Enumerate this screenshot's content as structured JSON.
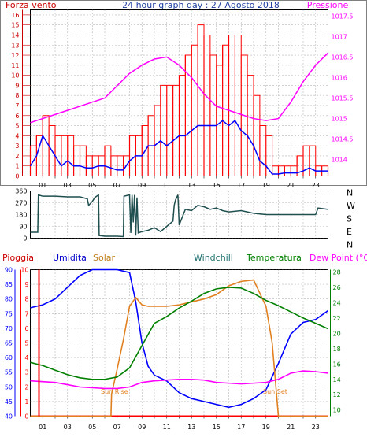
{
  "header": {
    "left": "Forza vento",
    "center": "24 hour graph day : 27 Agosto 2018",
    "right": "Pressione"
  },
  "colors": {
    "wind": "#ff0000",
    "wind_avg": "#0000ff",
    "pressure": "#ff00ff",
    "direction": "#1f4f4f",
    "rain": "#ff0000",
    "humidity": "#0000ff",
    "solar": "#e08020",
    "windchill": "#1f6f6f",
    "temperature": "#008000",
    "dewpoint": "#ff00ff",
    "axis_label_left": "#cc0000",
    "grid": "#707070"
  },
  "x_ticks": [
    "01",
    "03",
    "05",
    "07",
    "09",
    "11",
    "13",
    "15",
    "17",
    "19",
    "21",
    "23"
  ],
  "chart_data": [
    {
      "type": "line",
      "title": "24 hour graph day : 27 Agosto 2018",
      "x_range": [
        0,
        24
      ],
      "left_axis": {
        "label": "Forza vento",
        "range": [
          0,
          16.5
        ],
        "ticks": [
          0,
          1,
          2,
          3,
          4,
          5,
          6,
          7,
          8,
          9,
          10,
          11,
          12,
          13,
          14,
          15,
          16
        ]
      },
      "right_axis": {
        "label": "Pressione",
        "range": [
          1013.6,
          1017.65
        ],
        "ticks": [
          1014,
          1014.5,
          1015,
          1015.5,
          1016,
          1016.5,
          1017,
          1017.5
        ]
      },
      "series": [
        {
          "name": "Forza vento",
          "axis": "left",
          "x": [
            0,
            0.5,
            1,
            1.5,
            2,
            2.5,
            3,
            3.5,
            4,
            4.5,
            5,
            5.5,
            6,
            6.5,
            7,
            7.5,
            8,
            8.5,
            9,
            9.5,
            10,
            10.5,
            11,
            11.5,
            12,
            12.5,
            13,
            13.5,
            14,
            14.5,
            15,
            15.5,
            16,
            16.5,
            17,
            17.5,
            18,
            18.5,
            19,
            19.5,
            20,
            20.5,
            21,
            21.5,
            22,
            22.5,
            23,
            23.5,
            24
          ],
          "values": [
            3,
            4,
            6,
            5,
            4,
            4,
            4,
            3,
            3,
            2,
            2,
            2,
            3,
            2,
            2,
            2,
            4,
            4,
            5,
            6,
            7,
            9,
            9,
            9,
            10,
            12,
            13,
            15,
            14,
            12,
            11,
            13,
            14,
            14,
            12,
            10,
            8,
            5,
            4,
            1,
            1,
            1,
            1,
            2,
            3,
            3,
            1,
            1,
            1
          ]
        },
        {
          "name": "vento medio",
          "axis": "left",
          "x": [
            0,
            0.5,
            1,
            1.5,
            2,
            2.5,
            3,
            3.5,
            4,
            4.5,
            5,
            5.5,
            6,
            6.5,
            7,
            7.5,
            8,
            8.5,
            9,
            9.5,
            10,
            10.5,
            11,
            11.5,
            12,
            12.5,
            13,
            13.5,
            14,
            14.5,
            15,
            15.5,
            16,
            16.5,
            17,
            17.5,
            18,
            18.5,
            19,
            19.5,
            20,
            20.5,
            21,
            21.5,
            22,
            22.5,
            23,
            23.5,
            24
          ],
          "values": [
            1,
            2,
            4,
            3,
            2,
            1,
            1.5,
            1,
            1,
            0.8,
            0.8,
            1,
            1,
            0.8,
            0.6,
            0.6,
            1.5,
            2,
            2,
            3,
            3,
            3.5,
            3,
            3.5,
            4,
            4,
            4.5,
            5,
            5,
            5,
            5,
            5.5,
            5,
            5.5,
            4.5,
            4,
            3,
            1.5,
            1,
            0.2,
            0.2,
            0.3,
            0.3,
            0.3,
            0.5,
            0.8,
            0.5,
            0.5,
            0.5
          ]
        },
        {
          "name": "Pressione",
          "axis": "right",
          "x": [
            0,
            1,
            2,
            3,
            4,
            5,
            6,
            7,
            8,
            9,
            10,
            11,
            12,
            13,
            14,
            15,
            16,
            17,
            18,
            19,
            20,
            21,
            22,
            23,
            24
          ],
          "values": [
            1014.9,
            1015.0,
            1015.1,
            1015.2,
            1015.3,
            1015.4,
            1015.5,
            1015.8,
            1016.1,
            1016.3,
            1016.45,
            1016.5,
            1016.3,
            1016.0,
            1015.6,
            1015.3,
            1015.2,
            1015.1,
            1015.0,
            1014.95,
            1015.0,
            1015.4,
            1015.9,
            1016.3,
            1016.6
          ]
        }
      ]
    },
    {
      "type": "line",
      "x_range": [
        0,
        24
      ],
      "left_axis": {
        "range": [
          0,
          360
        ],
        "ticks": [
          0,
          45,
          90,
          135,
          180,
          225,
          270,
          315,
          360
        ]
      },
      "right_axis": {
        "ticks": [
          "N",
          "W",
          "S",
          "E",
          "N"
        ]
      },
      "series": [
        {
          "name": "direzione",
          "x": [
            0,
            0.6,
            0.65,
            1,
            2,
            3,
            4,
            4.6,
            4.7,
            5,
            5.2,
            5.5,
            5.55,
            6,
            7,
            7.5,
            7.55,
            8,
            8.1,
            8.2,
            8.3,
            8.4,
            8.5,
            8.6,
            8.7,
            9,
            9.5,
            10,
            10.5,
            11,
            11.5,
            11.6,
            11.7,
            11.9,
            12,
            12.5,
            13,
            13.5,
            14,
            14.5,
            15,
            15.5,
            16,
            17,
            18,
            19,
            20,
            21,
            22,
            23,
            23.2,
            24
          ],
          "values": [
            45,
            45,
            330,
            320,
            320,
            315,
            315,
            300,
            250,
            280,
            310,
            330,
            20,
            15,
            15,
            12,
            320,
            330,
            40,
            330,
            120,
            330,
            20,
            310,
            40,
            50,
            60,
            80,
            50,
            90,
            130,
            250,
            290,
            330,
            100,
            220,
            210,
            250,
            240,
            220,
            230,
            210,
            200,
            210,
            190,
            180,
            180,
            180,
            180,
            180,
            230,
            220
          ]
        }
      ]
    },
    {
      "type": "line",
      "x_range": [
        0,
        24
      ],
      "left_axes": [
        {
          "label": "Pioggia",
          "range": [
            0,
            10
          ],
          "ticks": [
            0,
            1,
            2,
            3,
            4,
            5,
            6,
            7,
            8,
            9,
            10
          ]
        },
        {
          "label": "Umidita",
          "range": [
            40,
            90
          ],
          "ticks": [
            40,
            45,
            50,
            55,
            60,
            65,
            70,
            75,
            80,
            85,
            90
          ]
        }
      ],
      "right_axis": {
        "label": "Dew Point (°C)",
        "range": [
          9.2,
          28.3
        ],
        "ticks": [
          10,
          12,
          14,
          16,
          18,
          20,
          22,
          24,
          26,
          28
        ]
      },
      "labels_middle": [
        "Solar",
        "Windchill",
        "Temperatura"
      ],
      "annotations": [
        "Sun Rise",
        "Sun Set"
      ],
      "series": [
        {
          "name": "Pioggia",
          "axis": "Pioggia",
          "x": [
            0,
            24
          ],
          "values": [
            0,
            0
          ]
        },
        {
          "name": "Umidita",
          "axis": "Umidita",
          "x": [
            0,
            1,
            2,
            3,
            4,
            5,
            6,
            7,
            8,
            8.5,
            9,
            9.5,
            10,
            11,
            12,
            13,
            14,
            15,
            16,
            17,
            18,
            19,
            20,
            21,
            22,
            23,
            24
          ],
          "values": [
            77,
            78,
            80,
            84,
            88,
            90,
            90,
            90,
            89,
            79,
            65,
            57,
            54,
            52,
            48,
            46,
            45,
            44,
            43,
            44,
            46,
            49,
            58,
            68,
            72,
            73,
            76
          ]
        },
        {
          "name": "Solar",
          "axis": "Pioggia",
          "x": [
            0,
            6,
            6.5,
            6.55,
            7,
            7.5,
            8,
            8.5,
            9,
            9.5,
            10,
            11,
            12,
            13,
            14,
            15,
            16,
            17,
            18,
            19,
            19.5,
            19.8,
            20,
            24
          ],
          "values": [
            0,
            0,
            0,
            1.5,
            3.2,
            5.2,
            7.5,
            8.1,
            7.6,
            7.5,
            7.5,
            7.5,
            7.6,
            7.8,
            8.0,
            8.3,
            8.9,
            9.2,
            9.3,
            7.5,
            5.0,
            2.0,
            0,
            0
          ]
        },
        {
          "name": "Temperatura",
          "axis": "right",
          "x": [
            0,
            1,
            2,
            3,
            4,
            5,
            6,
            7,
            8,
            9,
            10,
            11,
            12,
            13,
            14,
            15,
            16,
            17,
            18,
            19,
            20,
            21,
            22,
            23,
            24
          ],
          "values": [
            16.2,
            15.8,
            15.2,
            14.6,
            14.2,
            14.0,
            14.0,
            14.3,
            15.5,
            18.4,
            21.3,
            22.2,
            23.3,
            24.2,
            25.2,
            25.8,
            26.0,
            25.9,
            25.2,
            24.3,
            23.6,
            22.8,
            22.0,
            21.3,
            20.6
          ]
        },
        {
          "name": "Dew Point (°C)",
          "axis": "right",
          "x": [
            0,
            1,
            2,
            3,
            4,
            5,
            6,
            7,
            8,
            9,
            10,
            11,
            12,
            13,
            14,
            15,
            16,
            17,
            18,
            19,
            20,
            21,
            22,
            23,
            24
          ],
          "values": [
            13.8,
            13.7,
            13.6,
            13.3,
            13.0,
            12.9,
            12.8,
            12.8,
            13.0,
            13.6,
            13.8,
            13.9,
            14.0,
            14.0,
            13.9,
            13.6,
            13.5,
            13.4,
            13.5,
            13.6,
            14.0,
            14.8,
            15.1,
            15.0,
            14.8
          ]
        }
      ]
    }
  ]
}
